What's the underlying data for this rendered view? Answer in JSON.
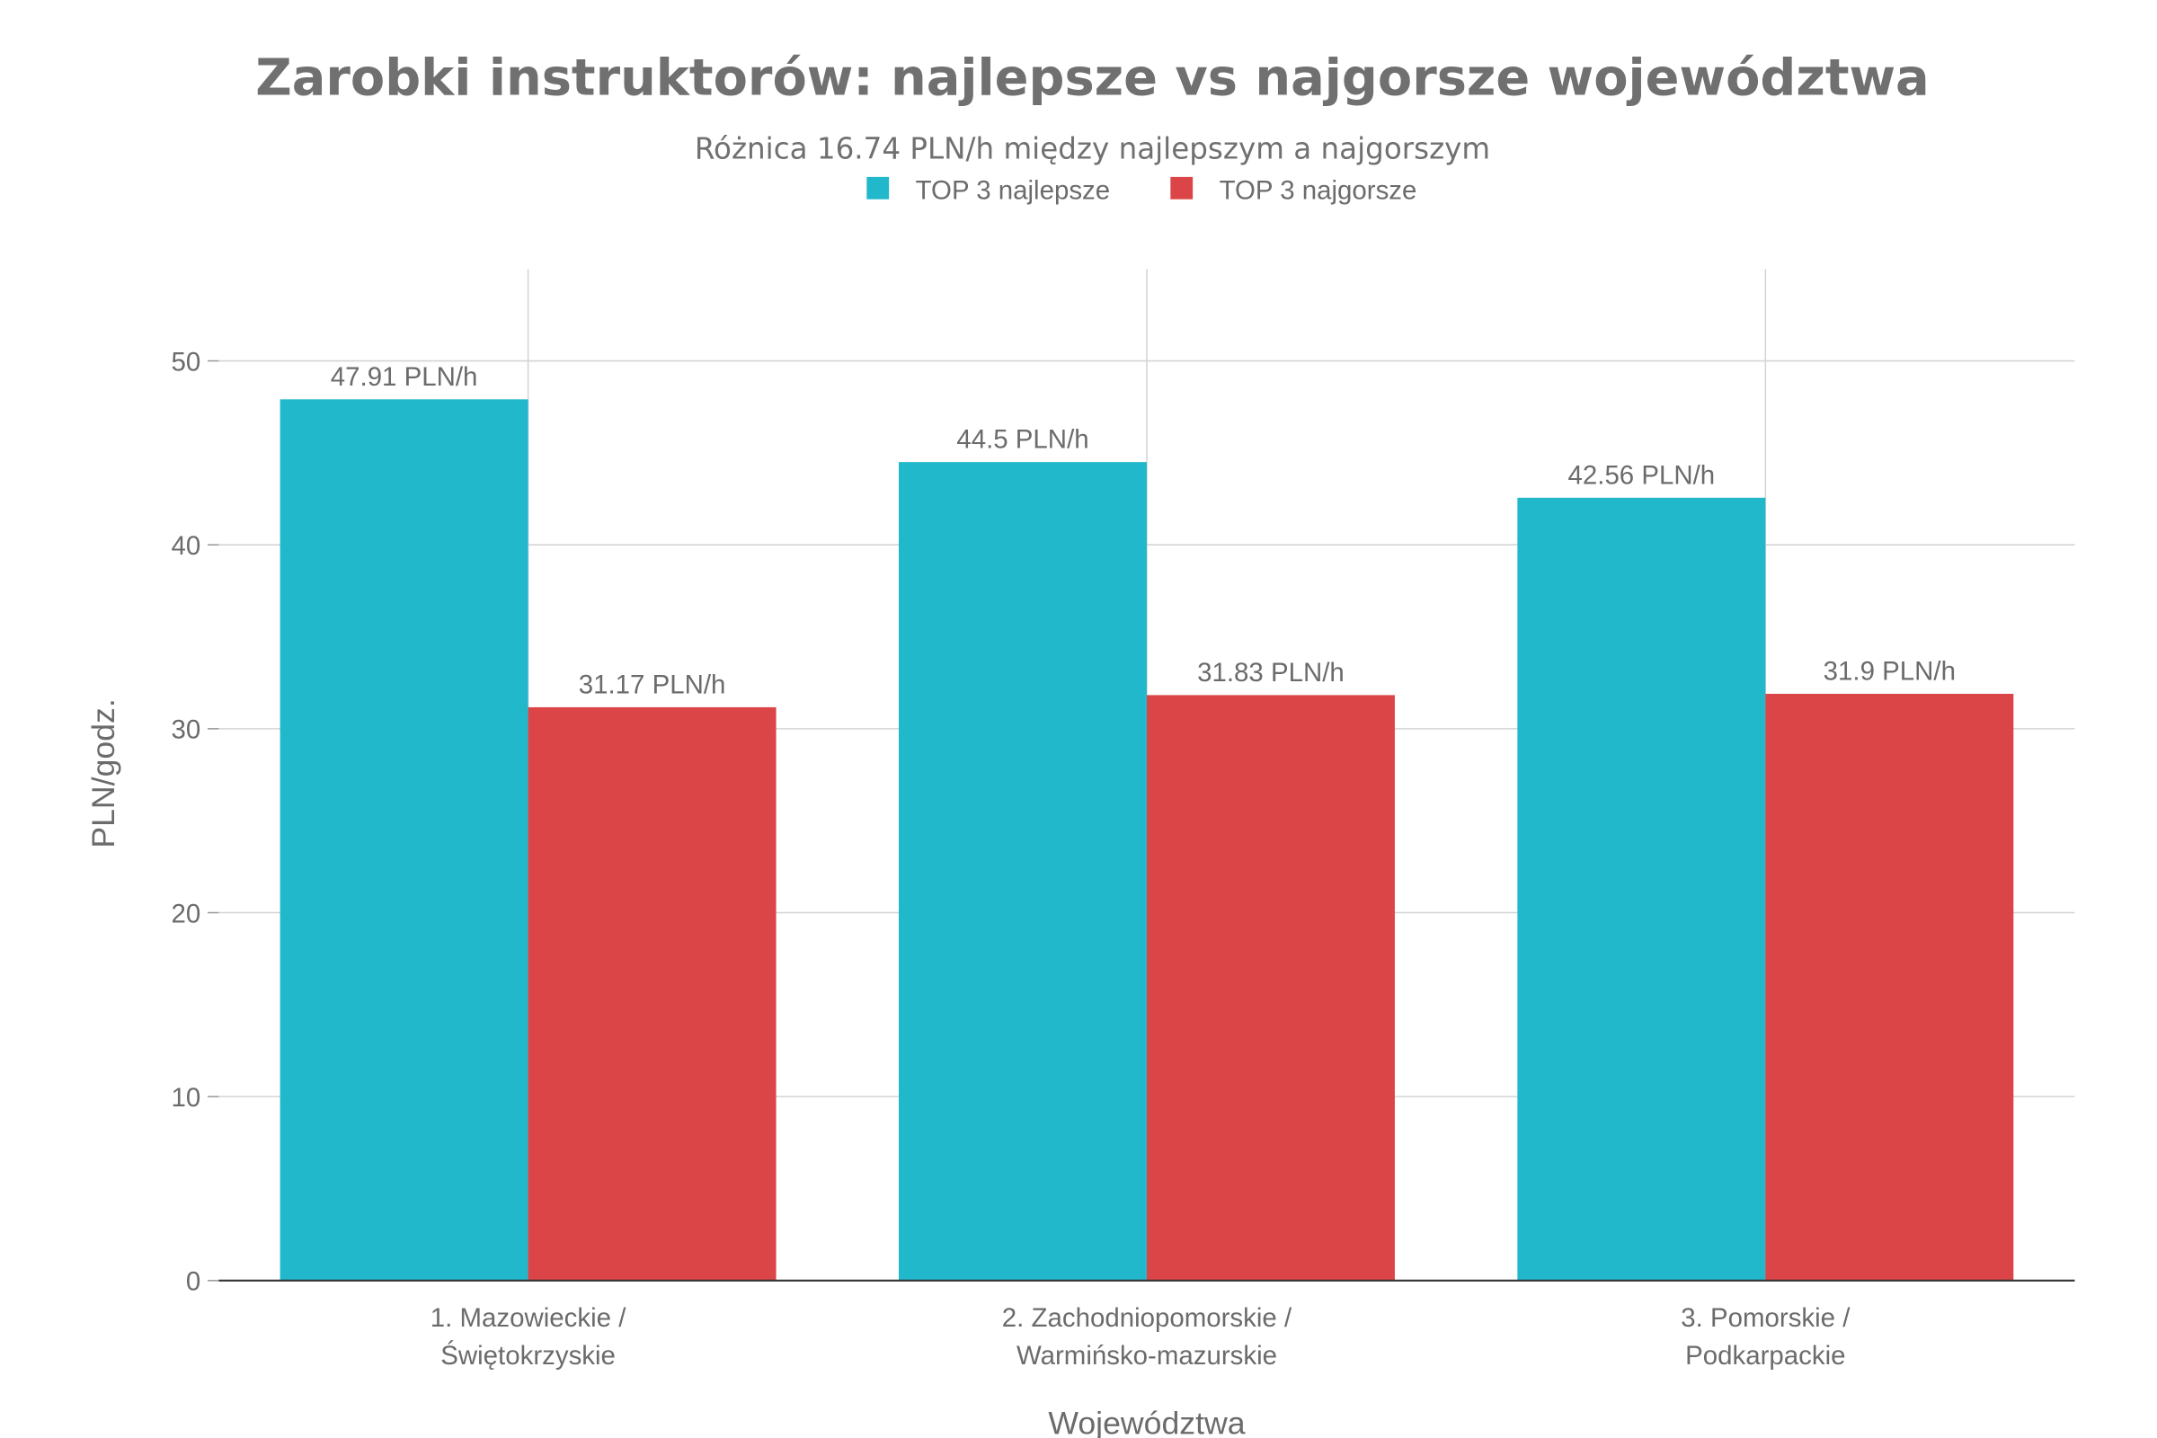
{
  "chart_data": {
    "type": "bar",
    "title": "Zarobki instruktorów: najlepsze vs najgorsze województwa",
    "subtitle": "Różnica 16.74 PLN/h między najlepszym a najgorszym",
    "xlabel": "Województwa",
    "ylabel": "PLN/godz.",
    "ylim": [
      0,
      55
    ],
    "yticks": [
      0,
      10,
      20,
      30,
      40,
      50
    ],
    "grid": true,
    "legend_placement": "top-center",
    "categories": [
      [
        "1. Mazowieckie /",
        "Świętokrzyskie"
      ],
      [
        "2. Zachodniopomorskie /",
        "Warmińsko-mazurskie"
      ],
      [
        "3. Pomorskie /",
        "Podkarpackie"
      ]
    ],
    "series": [
      {
        "name": "TOP 3 najlepsze",
        "color": "#22b8cc",
        "values": [
          47.91,
          44.5,
          42.56
        ],
        "labels": [
          "47.91 PLN/h",
          "44.5 PLN/h",
          "42.56 PLN/h"
        ]
      },
      {
        "name": "TOP 3 najgorsze",
        "color": "#db4547",
        "values": [
          31.17,
          31.83,
          31.9
        ],
        "labels": [
          "31.17 PLN/h",
          "31.83 PLN/h",
          "31.9 PLN/h"
        ]
      }
    ]
  }
}
